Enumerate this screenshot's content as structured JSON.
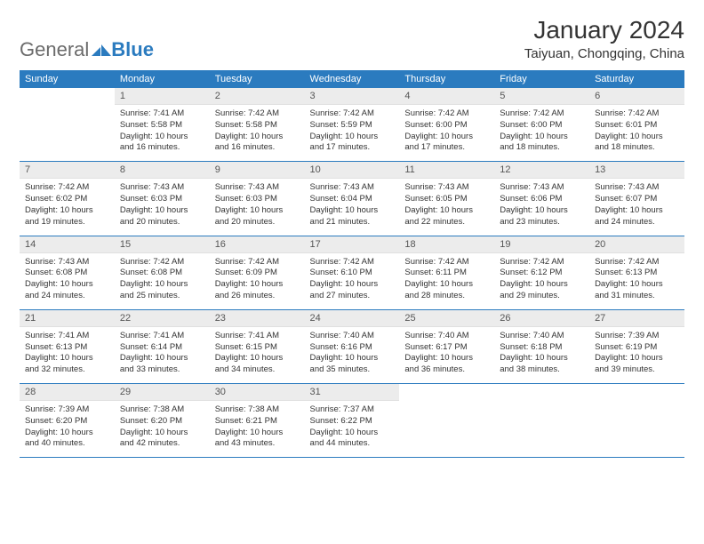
{
  "logo": {
    "part1": "General",
    "part2": "Blue"
  },
  "header": {
    "month_title": "January 2024",
    "location": "Taiyuan, Chongqing, China"
  },
  "colors": {
    "header_bg": "#2b7bbf",
    "header_text": "#ffffff",
    "daynum_bg": "#ececec",
    "border": "#2b7bbf",
    "body_text": "#333333"
  },
  "dayheaders": [
    "Sunday",
    "Monday",
    "Tuesday",
    "Wednesday",
    "Thursday",
    "Friday",
    "Saturday"
  ],
  "weeks": [
    [
      null,
      {
        "n": "1",
        "sr": "Sunrise: 7:41 AM",
        "ss": "Sunset: 5:58 PM",
        "d1": "Daylight: 10 hours",
        "d2": "and 16 minutes."
      },
      {
        "n": "2",
        "sr": "Sunrise: 7:42 AM",
        "ss": "Sunset: 5:58 PM",
        "d1": "Daylight: 10 hours",
        "d2": "and 16 minutes."
      },
      {
        "n": "3",
        "sr": "Sunrise: 7:42 AM",
        "ss": "Sunset: 5:59 PM",
        "d1": "Daylight: 10 hours",
        "d2": "and 17 minutes."
      },
      {
        "n": "4",
        "sr": "Sunrise: 7:42 AM",
        "ss": "Sunset: 6:00 PM",
        "d1": "Daylight: 10 hours",
        "d2": "and 17 minutes."
      },
      {
        "n": "5",
        "sr": "Sunrise: 7:42 AM",
        "ss": "Sunset: 6:00 PM",
        "d1": "Daylight: 10 hours",
        "d2": "and 18 minutes."
      },
      {
        "n": "6",
        "sr": "Sunrise: 7:42 AM",
        "ss": "Sunset: 6:01 PM",
        "d1": "Daylight: 10 hours",
        "d2": "and 18 minutes."
      }
    ],
    [
      {
        "n": "7",
        "sr": "Sunrise: 7:42 AM",
        "ss": "Sunset: 6:02 PM",
        "d1": "Daylight: 10 hours",
        "d2": "and 19 minutes."
      },
      {
        "n": "8",
        "sr": "Sunrise: 7:43 AM",
        "ss": "Sunset: 6:03 PM",
        "d1": "Daylight: 10 hours",
        "d2": "and 20 minutes."
      },
      {
        "n": "9",
        "sr": "Sunrise: 7:43 AM",
        "ss": "Sunset: 6:03 PM",
        "d1": "Daylight: 10 hours",
        "d2": "and 20 minutes."
      },
      {
        "n": "10",
        "sr": "Sunrise: 7:43 AM",
        "ss": "Sunset: 6:04 PM",
        "d1": "Daylight: 10 hours",
        "d2": "and 21 minutes."
      },
      {
        "n": "11",
        "sr": "Sunrise: 7:43 AM",
        "ss": "Sunset: 6:05 PM",
        "d1": "Daylight: 10 hours",
        "d2": "and 22 minutes."
      },
      {
        "n": "12",
        "sr": "Sunrise: 7:43 AM",
        "ss": "Sunset: 6:06 PM",
        "d1": "Daylight: 10 hours",
        "d2": "and 23 minutes."
      },
      {
        "n": "13",
        "sr": "Sunrise: 7:43 AM",
        "ss": "Sunset: 6:07 PM",
        "d1": "Daylight: 10 hours",
        "d2": "and 24 minutes."
      }
    ],
    [
      {
        "n": "14",
        "sr": "Sunrise: 7:43 AM",
        "ss": "Sunset: 6:08 PM",
        "d1": "Daylight: 10 hours",
        "d2": "and 24 minutes."
      },
      {
        "n": "15",
        "sr": "Sunrise: 7:42 AM",
        "ss": "Sunset: 6:08 PM",
        "d1": "Daylight: 10 hours",
        "d2": "and 25 minutes."
      },
      {
        "n": "16",
        "sr": "Sunrise: 7:42 AM",
        "ss": "Sunset: 6:09 PM",
        "d1": "Daylight: 10 hours",
        "d2": "and 26 minutes."
      },
      {
        "n": "17",
        "sr": "Sunrise: 7:42 AM",
        "ss": "Sunset: 6:10 PM",
        "d1": "Daylight: 10 hours",
        "d2": "and 27 minutes."
      },
      {
        "n": "18",
        "sr": "Sunrise: 7:42 AM",
        "ss": "Sunset: 6:11 PM",
        "d1": "Daylight: 10 hours",
        "d2": "and 28 minutes."
      },
      {
        "n": "19",
        "sr": "Sunrise: 7:42 AM",
        "ss": "Sunset: 6:12 PM",
        "d1": "Daylight: 10 hours",
        "d2": "and 29 minutes."
      },
      {
        "n": "20",
        "sr": "Sunrise: 7:42 AM",
        "ss": "Sunset: 6:13 PM",
        "d1": "Daylight: 10 hours",
        "d2": "and 31 minutes."
      }
    ],
    [
      {
        "n": "21",
        "sr": "Sunrise: 7:41 AM",
        "ss": "Sunset: 6:13 PM",
        "d1": "Daylight: 10 hours",
        "d2": "and 32 minutes."
      },
      {
        "n": "22",
        "sr": "Sunrise: 7:41 AM",
        "ss": "Sunset: 6:14 PM",
        "d1": "Daylight: 10 hours",
        "d2": "and 33 minutes."
      },
      {
        "n": "23",
        "sr": "Sunrise: 7:41 AM",
        "ss": "Sunset: 6:15 PM",
        "d1": "Daylight: 10 hours",
        "d2": "and 34 minutes."
      },
      {
        "n": "24",
        "sr": "Sunrise: 7:40 AM",
        "ss": "Sunset: 6:16 PM",
        "d1": "Daylight: 10 hours",
        "d2": "and 35 minutes."
      },
      {
        "n": "25",
        "sr": "Sunrise: 7:40 AM",
        "ss": "Sunset: 6:17 PM",
        "d1": "Daylight: 10 hours",
        "d2": "and 36 minutes."
      },
      {
        "n": "26",
        "sr": "Sunrise: 7:40 AM",
        "ss": "Sunset: 6:18 PM",
        "d1": "Daylight: 10 hours",
        "d2": "and 38 minutes."
      },
      {
        "n": "27",
        "sr": "Sunrise: 7:39 AM",
        "ss": "Sunset: 6:19 PM",
        "d1": "Daylight: 10 hours",
        "d2": "and 39 minutes."
      }
    ],
    [
      {
        "n": "28",
        "sr": "Sunrise: 7:39 AM",
        "ss": "Sunset: 6:20 PM",
        "d1": "Daylight: 10 hours",
        "d2": "and 40 minutes."
      },
      {
        "n": "29",
        "sr": "Sunrise: 7:38 AM",
        "ss": "Sunset: 6:20 PM",
        "d1": "Daylight: 10 hours",
        "d2": "and 42 minutes."
      },
      {
        "n": "30",
        "sr": "Sunrise: 7:38 AM",
        "ss": "Sunset: 6:21 PM",
        "d1": "Daylight: 10 hours",
        "d2": "and 43 minutes."
      },
      {
        "n": "31",
        "sr": "Sunrise: 7:37 AM",
        "ss": "Sunset: 6:22 PM",
        "d1": "Daylight: 10 hours",
        "d2": "and 44 minutes."
      },
      null,
      null,
      null
    ]
  ]
}
